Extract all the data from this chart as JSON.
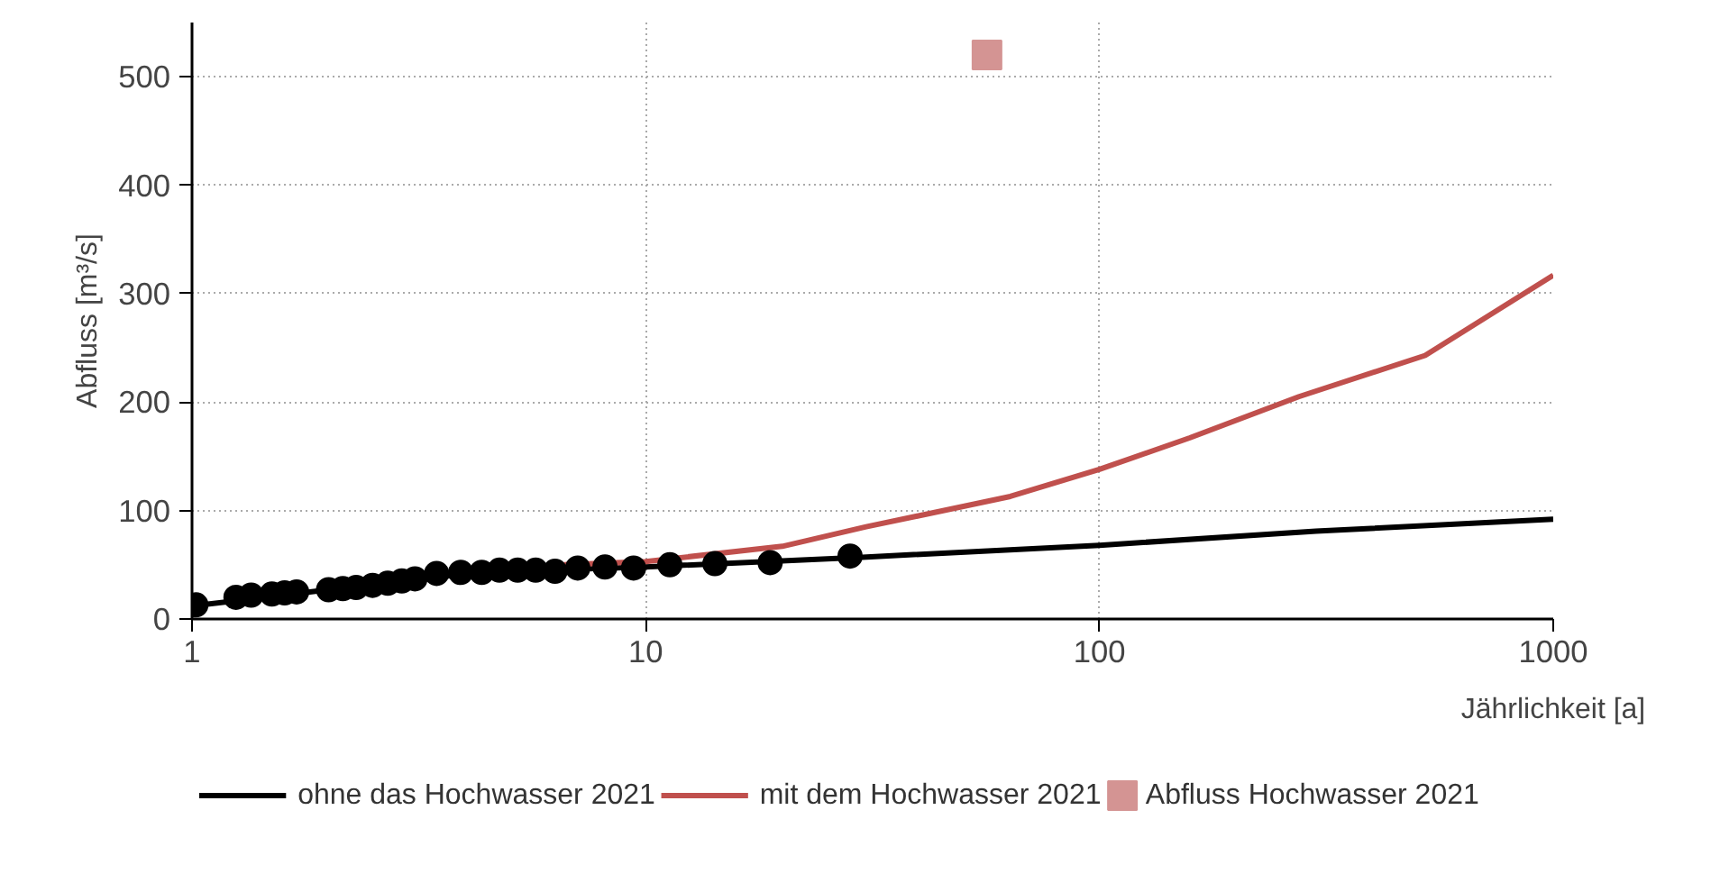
{
  "chart_data": {
    "type": "line",
    "xlabel": "Jährlichkeit [a]",
    "ylabel": "Abfluss [m³/s]",
    "log": "x",
    "xlim": [
      1,
      1000
    ],
    "xticks": [
      1,
      10,
      100,
      1000
    ],
    "ylim": [
      0,
      550
    ],
    "yticks": [
      0,
      100,
      200,
      300,
      400,
      500
    ],
    "grid": true,
    "legend": "bottom",
    "series": [
      {
        "name": "ohne das Hochwasser 2021",
        "color": "#000000",
        "x": [
          1,
          2,
          3,
          5,
          10,
          30,
          100,
          300,
          1000
        ],
        "values": [
          12,
          27,
          37,
          44,
          48,
          57,
          68,
          81,
          92
        ]
      },
      {
        "name": "mit dem Hochwasser 2021",
        "color": "#c0504d",
        "x": [
          6.6,
          10,
          20,
          30.6,
          63.6,
          100,
          158,
          275,
          522,
          1000
        ],
        "values": [
          50,
          53,
          67,
          85,
          113,
          138,
          167,
          205,
          243,
          317
        ]
      },
      {
        "type": "scatter",
        "marker": "circle",
        "color": "#000000",
        "x": [
          1.02,
          1.25,
          1.35,
          1.5,
          1.6,
          1.7,
          2.0,
          2.15,
          2.3,
          2.5,
          2.7,
          2.9,
          3.1,
          3.46,
          3.91,
          4.35,
          4.76,
          5.22,
          5.72,
          6.31,
          7.08,
          8.13,
          9.4,
          11.3,
          14.2,
          18.8,
          28.2
        ],
        "values": [
          13,
          20,
          22,
          23,
          24,
          25,
          27,
          28,
          29,
          31,
          33,
          35,
          37,
          42,
          43,
          43,
          45,
          45,
          45,
          44,
          47,
          48,
          47,
          50,
          51,
          52,
          58
        ]
      },
      {
        "name": "Abfluss Hochwasser 2021",
        "type": "scatter",
        "marker": "square",
        "color": "#d49493",
        "x": [
          56.5
        ],
        "values": [
          520
        ]
      }
    ]
  }
}
